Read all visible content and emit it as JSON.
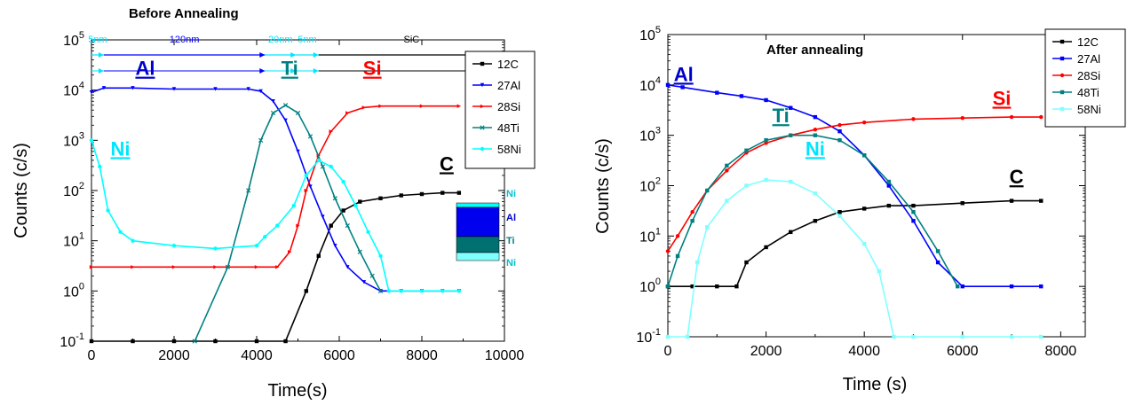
{
  "chart_data": [
    {
      "type": "line",
      "title": "Before Annealing",
      "xlabel": "Time(s)",
      "ylabel": "Counts (c/s)",
      "xlim": [
        0,
        10000
      ],
      "ylim": [
        0.1,
        100000
      ],
      "yscale": "log",
      "x_ticks": [
        0,
        2000,
        4000,
        6000,
        8000,
        10000
      ],
      "y_ticks": [
        {
          "v": 0.1,
          "base": "10",
          "exp": "-1"
        },
        {
          "v": 1,
          "base": "10",
          "exp": "0"
        },
        {
          "v": 10,
          "base": "10",
          "exp": "1"
        },
        {
          "v": 100,
          "base": "10",
          "exp": "2"
        },
        {
          "v": 1000,
          "base": "10",
          "exp": "3"
        },
        {
          "v": 10000,
          "base": "10",
          "exp": "4"
        },
        {
          "v": 100000,
          "base": "10",
          "exp": "5"
        }
      ],
      "legend_position": "top-right",
      "series": [
        {
          "name": "12C",
          "color": "#000000",
          "marker": "square",
          "points": [
            [
              0,
              0.1
            ],
            [
              1000,
              0.1
            ],
            [
              2000,
              0.1
            ],
            [
              3000,
              0.1
            ],
            [
              4000,
              0.1
            ],
            [
              4700,
              0.1
            ],
            [
              5200,
              1
            ],
            [
              5500,
              5
            ],
            [
              5800,
              20
            ],
            [
              6100,
              40
            ],
            [
              6500,
              60
            ],
            [
              7000,
              70
            ],
            [
              7500,
              80
            ],
            [
              8000,
              85
            ],
            [
              8500,
              90
            ],
            [
              8900,
              90
            ]
          ]
        },
        {
          "name": "27Al",
          "color": "#0000ff",
          "marker": "triangle-down",
          "points": [
            [
              0,
              9000
            ],
            [
              300,
              11000
            ],
            [
              1000,
              11000
            ],
            [
              2000,
              10500
            ],
            [
              3000,
              10500
            ],
            [
              3800,
              10500
            ],
            [
              4100,
              9500
            ],
            [
              4400,
              6000
            ],
            [
              4700,
              2500
            ],
            [
              5000,
              600
            ],
            [
              5300,
              120
            ],
            [
              5600,
              30
            ],
            [
              5900,
              8
            ],
            [
              6200,
              3
            ],
            [
              6600,
              1.5
            ],
            [
              7000,
              1
            ],
            [
              7500,
              1
            ],
            [
              8000,
              1
            ],
            [
              8500,
              1
            ],
            [
              8900,
              1
            ]
          ]
        },
        {
          "name": "28Si",
          "color": "#ff0000",
          "marker": "triangle-right",
          "points": [
            [
              0,
              3
            ],
            [
              1000,
              3
            ],
            [
              2000,
              3
            ],
            [
              3000,
              3
            ],
            [
              4000,
              3
            ],
            [
              4500,
              3
            ],
            [
              4800,
              6
            ],
            [
              5000,
              20
            ],
            [
              5200,
              100
            ],
            [
              5500,
              500
            ],
            [
              5800,
              1500
            ],
            [
              6200,
              3500
            ],
            [
              6600,
              4500
            ],
            [
              7000,
              4800
            ],
            [
              8000,
              4800
            ],
            [
              8900,
              4800
            ]
          ]
        },
        {
          "name": "48Ti",
          "color": "#008080",
          "marker": "x",
          "points": [
            [
              2500,
              0.1
            ],
            [
              3300,
              3
            ],
            [
              3800,
              100
            ],
            [
              4100,
              1000
            ],
            [
              4400,
              3500
            ],
            [
              4700,
              5000
            ],
            [
              5000,
              3500
            ],
            [
              5300,
              1200
            ],
            [
              5600,
              300
            ],
            [
              5900,
              70
            ],
            [
              6200,
              20
            ],
            [
              6500,
              6
            ],
            [
              6800,
              2
            ],
            [
              7000,
              1
            ]
          ]
        },
        {
          "name": "58Ni",
          "color": "#00ffff",
          "marker": "circle",
          "points": [
            [
              0,
              1000
            ],
            [
              200,
              300
            ],
            [
              400,
              40
            ],
            [
              700,
              15
            ],
            [
              1000,
              10
            ],
            [
              2000,
              8
            ],
            [
              3000,
              7
            ],
            [
              4000,
              8
            ],
            [
              4200,
              12
            ],
            [
              4500,
              20
            ],
            [
              4900,
              50
            ],
            [
              5200,
              200
            ],
            [
              5500,
              400
            ],
            [
              5800,
              300
            ],
            [
              6100,
              150
            ],
            [
              6400,
              50
            ],
            [
              6700,
              15
            ],
            [
              7000,
              5
            ],
            [
              7200,
              1
            ],
            [
              7500,
              1
            ],
            [
              8000,
              1
            ],
            [
              8500,
              1
            ],
            [
              8900,
              1
            ]
          ]
        }
      ],
      "annotations": {
        "layers": [
          {
            "label": "5nm",
            "x_start": 0,
            "x_end": 300,
            "color": "#00e5ff"
          },
          {
            "label": "120nm",
            "x_start": 300,
            "x_end": 4200,
            "color": "#0000ff"
          },
          {
            "label": "20nm",
            "x_start": 4200,
            "x_end": 4950,
            "color": "#00e5ff"
          },
          {
            "label": "5nm",
            "x_start": 4950,
            "x_end": 5500,
            "color": "#00e5ff"
          },
          {
            "label": "SiC",
            "x_start": 5500,
            "x_end": 10000,
            "color": "#000000"
          }
        ],
        "element_labels": [
          {
            "text": "Al",
            "x": 1300,
            "y": 20000,
            "color": "#0000cc"
          },
          {
            "text": "Ti",
            "x": 4800,
            "y": 20000,
            "color": "#008080"
          },
          {
            "text": "Si",
            "x": 6800,
            "y": 20000,
            "color": "#ff0000"
          },
          {
            "text": "Ni",
            "x": 700,
            "y": 500,
            "color": "#00e5ff"
          },
          {
            "text": "C",
            "x": 8600,
            "y": 250,
            "color": "#000000"
          }
        ],
        "stack_labels": [
          "Ni",
          "Al",
          "Ti",
          "Ni"
        ]
      }
    },
    {
      "type": "line",
      "title": "After annealing",
      "xlabel": "Time (s)",
      "ylabel": "Counts (c/s)",
      "xlim": [
        0,
        8500
      ],
      "ylim": [
        0.1,
        100000
      ],
      "yscale": "log",
      "x_ticks": [
        0,
        2000,
        4000,
        6000,
        8000
      ],
      "y_ticks": [
        {
          "v": 0.1,
          "base": "10",
          "exp": "-1"
        },
        {
          "v": 1,
          "base": "10",
          "exp": "0"
        },
        {
          "v": 10,
          "base": "10",
          "exp": "1"
        },
        {
          "v": 100,
          "base": "10",
          "exp": "2"
        },
        {
          "v": 1000,
          "base": "10",
          "exp": "3"
        },
        {
          "v": 10000,
          "base": "10",
          "exp": "4"
        },
        {
          "v": 100000,
          "base": "10",
          "exp": "5"
        }
      ],
      "legend_position": "top-right",
      "series": [
        {
          "name": "12C",
          "color": "#000000",
          "marker": "square",
          "points": [
            [
              0,
              1
            ],
            [
              500,
              1
            ],
            [
              1000,
              1
            ],
            [
              1400,
              1
            ],
            [
              1600,
              3
            ],
            [
              2000,
              6
            ],
            [
              2500,
              12
            ],
            [
              3000,
              20
            ],
            [
              3500,
              30
            ],
            [
              4000,
              35
            ],
            [
              4500,
              40
            ],
            [
              5000,
              40
            ],
            [
              6000,
              45
            ],
            [
              7000,
              50
            ],
            [
              7600,
              50
            ]
          ]
        },
        {
          "name": "27Al",
          "color": "#0000ff",
          "marker": "square",
          "points": [
            [
              0,
              10000
            ],
            [
              300,
              9000
            ],
            [
              1000,
              7000
            ],
            [
              1500,
              6000
            ],
            [
              2000,
              5000
            ],
            [
              2500,
              3500
            ],
            [
              3000,
              2300
            ],
            [
              3500,
              1200
            ],
            [
              4000,
              400
            ],
            [
              4500,
              100
            ],
            [
              5000,
              20
            ],
            [
              5500,
              3
            ],
            [
              6000,
              1
            ],
            [
              7000,
              1
            ],
            [
              7600,
              1
            ]
          ]
        },
        {
          "name": "28Si",
          "color": "#ff0000",
          "marker": "circle",
          "points": [
            [
              0,
              5
            ],
            [
              200,
              10
            ],
            [
              500,
              30
            ],
            [
              800,
              80
            ],
            [
              1200,
              200
            ],
            [
              1600,
              450
            ],
            [
              2000,
              700
            ],
            [
              2500,
              1000
            ],
            [
              3000,
              1300
            ],
            [
              3500,
              1600
            ],
            [
              4000,
              1800
            ],
            [
              5000,
              2100
            ],
            [
              6000,
              2200
            ],
            [
              7000,
              2300
            ],
            [
              7600,
              2300
            ]
          ]
        },
        {
          "name": "48Ti",
          "color": "#008080",
          "marker": "square",
          "points": [
            [
              0,
              1
            ],
            [
              200,
              4
            ],
            [
              500,
              20
            ],
            [
              800,
              80
            ],
            [
              1200,
              250
            ],
            [
              1600,
              500
            ],
            [
              2000,
              800
            ],
            [
              2500,
              1000
            ],
            [
              3000,
              1000
            ],
            [
              3500,
              800
            ],
            [
              4000,
              400
            ],
            [
              4500,
              120
            ],
            [
              5000,
              30
            ],
            [
              5500,
              5
            ],
            [
              5900,
              1
            ]
          ]
        },
        {
          "name": "58Ni",
          "color": "#80ffff",
          "marker": "square",
          "points": [
            [
              0,
              0.1
            ],
            [
              400,
              0.1
            ],
            [
              600,
              3
            ],
            [
              800,
              15
            ],
            [
              1200,
              50
            ],
            [
              1600,
              100
            ],
            [
              2000,
              130
            ],
            [
              2500,
              120
            ],
            [
              3000,
              70
            ],
            [
              3500,
              25
            ],
            [
              4000,
              7
            ],
            [
              4300,
              2
            ],
            [
              4600,
              0.1
            ],
            [
              5000,
              0.1
            ],
            [
              6000,
              0.1
            ],
            [
              7000,
              0.1
            ],
            [
              7600,
              0.1
            ]
          ]
        }
      ],
      "annotations": {
        "element_labels": [
          {
            "text": "Al",
            "x": 320,
            "y": 12000,
            "color": "#0000cc"
          },
          {
            "text": "Si",
            "x": 6800,
            "y": 4000,
            "color": "#ff0000"
          },
          {
            "text": "Ti",
            "x": 2300,
            "y": 1800,
            "color": "#008080"
          },
          {
            "text": "Ni",
            "x": 3000,
            "y": 400,
            "color": "#00e5ff"
          },
          {
            "text": "C",
            "x": 7100,
            "y": 110,
            "color": "#000000"
          }
        ]
      }
    }
  ]
}
